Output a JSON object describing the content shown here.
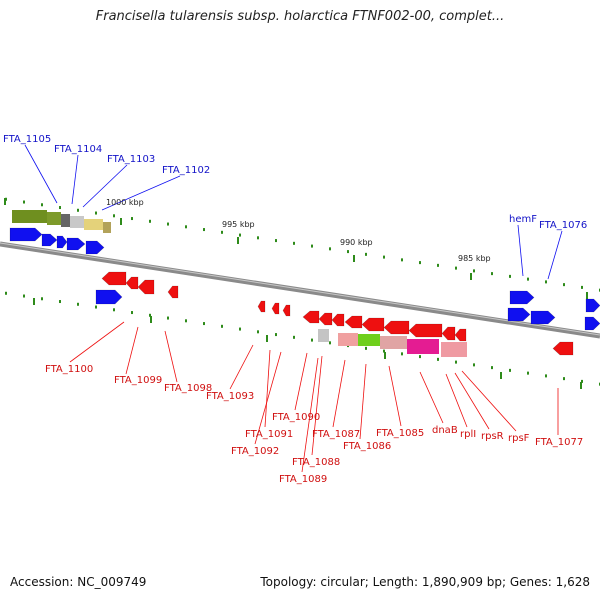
{
  "title": "Francisella tularensis subsp. holarctica FTNF002-00, complet...",
  "footer": {
    "accession": "Accession: NC_009749",
    "summary": "Topology: circular; Length: 1,890,909 bp; Genes: 1,628"
  },
  "colors": {
    "plus_strand": "#1010f0",
    "minus_strand": "#ee1010",
    "tick": "#2e8b1a",
    "backbone": "#8a8a8a"
  },
  "scale_labels": [
    "1000 kbp",
    "995 kbp",
    "990 kbp",
    "985 kbp"
  ],
  "upper_gene_labels": [
    "FTA_1105",
    "FTA_1104",
    "FTA_1103",
    "FTA_1102",
    "hemF",
    "FTA_1076"
  ],
  "lower_gene_labels": [
    "FTA_1100",
    "FTA_1099",
    "FTA_1098",
    "FTA_1093",
    "FTA_1091",
    "FTA_1092",
    "FTA_1090",
    "FTA_1088",
    "FTA_1089",
    "FTA_1087",
    "FTA_1086",
    "FTA_1085",
    "dnaB",
    "rplI",
    "rpsR",
    "rpsF",
    "FTA_1077"
  ]
}
